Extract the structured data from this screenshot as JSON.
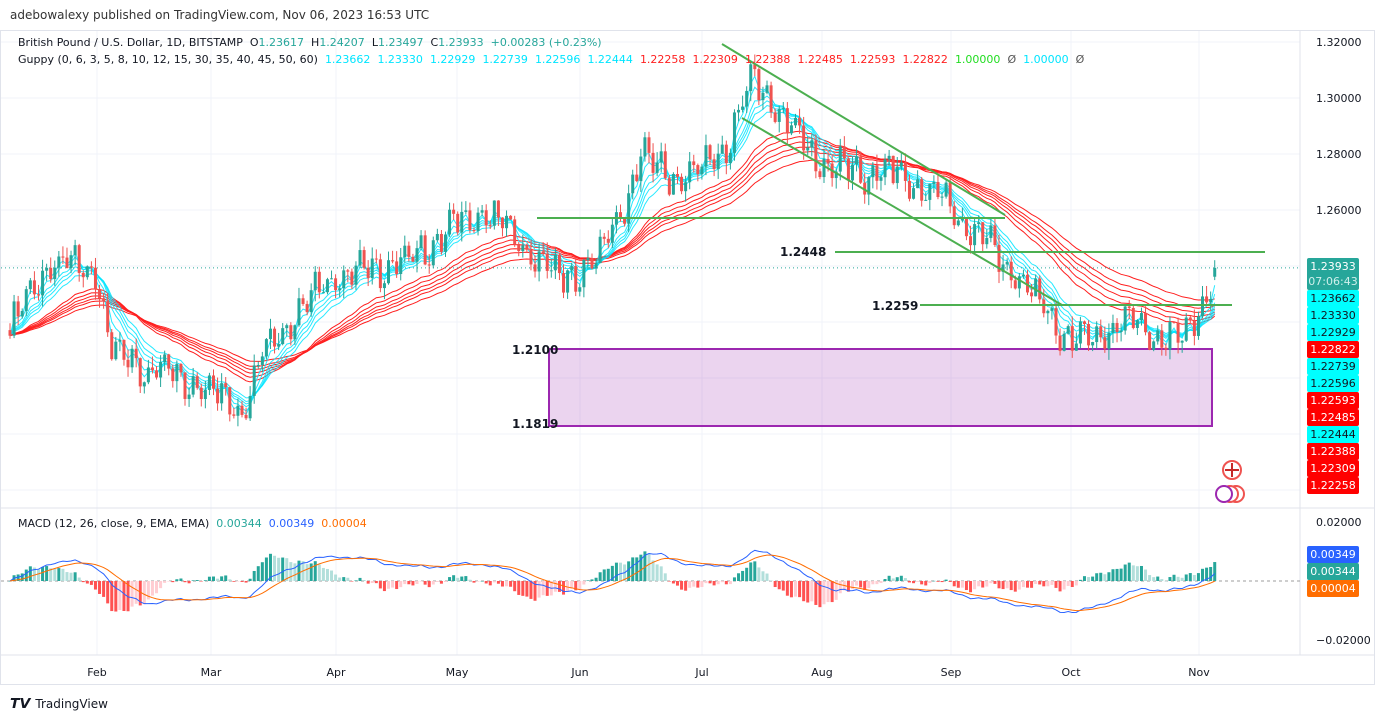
{
  "publisher": "adebowalexy published on TradingView.com, Nov 06, 2023 16:53 UTC",
  "header": {
    "symbol": "British Pound / U.S. Dollar, 1D, BITSTAMP",
    "o_label": "O",
    "o": "1.23617",
    "h_label": "H",
    "h": "1.24207",
    "l_label": "L",
    "l": "1.23497",
    "c_label": "C",
    "c": "1.23933",
    "change": "+0.00283 (+0.23%)"
  },
  "guppy": {
    "label": "Guppy (0, 6, 3, 5, 8, 10, 12, 15, 30, 35, 40, 45, 50, 60)",
    "short_values": [
      "1.23662",
      "1.23330",
      "1.22929",
      "1.22739",
      "1.22596",
      "1.22444"
    ],
    "long_values": [
      "1.22258",
      "1.22309",
      "1.22388",
      "1.22485",
      "1.22593",
      "1.22822"
    ],
    "extra1": "1.00000",
    "extra2": "1.00000",
    "null_symbol": "Ø"
  },
  "macd": {
    "label": "MACD (12, 26, close, 9, EMA, EMA)",
    "hist": "0.00344",
    "macd": "0.00349",
    "signal": "0.00004"
  },
  "price_axis": [
    "1.32000",
    "1.30000",
    "1.28000",
    "1.26000"
  ],
  "macd_axis": [
    "0.02000",
    "−0.02000"
  ],
  "current_price": {
    "price": "1.23933",
    "countdown": "07:06:43"
  },
  "price_labels": [
    {
      "v": "1.23662",
      "c": "cyan"
    },
    {
      "v": "1.23330",
      "c": "cyan"
    },
    {
      "v": "1.22929",
      "c": "cyan"
    },
    {
      "v": "1.22822",
      "c": "red"
    },
    {
      "v": "1.22739",
      "c": "cyan"
    },
    {
      "v": "1.22596",
      "c": "cyan"
    },
    {
      "v": "1.22593",
      "c": "red"
    },
    {
      "v": "1.22485",
      "c": "red"
    },
    {
      "v": "1.22444",
      "c": "cyan"
    },
    {
      "v": "1.22388",
      "c": "red"
    },
    {
      "v": "1.22309",
      "c": "red"
    },
    {
      "v": "1.22258",
      "c": "red"
    }
  ],
  "macd_labels": [
    {
      "v": "0.00349",
      "c": "#2962ff"
    },
    {
      "v": "0.00344",
      "c": "#26a69a"
    },
    {
      "v": "0.00004",
      "c": "#ff6d00"
    }
  ],
  "annotations": {
    "level1": "1.2448",
    "level2": "1.2259",
    "zone_top": "1.2100",
    "zone_bottom": "1.1819"
  },
  "time_axis": [
    "Feb",
    "Mar",
    "Apr",
    "May",
    "Jun",
    "Jul",
    "Aug",
    "Sep",
    "Oct",
    "Nov"
  ],
  "footer": "TradingView",
  "colors": {
    "up": "#26a69a",
    "down": "#ef5350",
    "short_ema": "#00e5ff",
    "long_ema": "#ff1f1f",
    "macd": "#2962ff",
    "signal": "#ff6d00",
    "trend": "#4caf50",
    "zone": "#9c27b0"
  },
  "chart_data": {
    "type": "candlestick",
    "title": "British Pound / U.S. Dollar, 1D, BITSTAMP",
    "ylim": [
      1.17,
      1.325
    ],
    "keypoints_day_price": [
      [
        0,
        1.2171
      ],
      [
        9,
        1.2404
      ],
      [
        21,
        1.2386
      ],
      [
        25,
        1.21
      ],
      [
        34,
        1.2029
      ],
      [
        47,
        1.1975
      ],
      [
        57,
        1.1886
      ],
      [
        63,
        1.2118
      ],
      [
        79,
        1.2368
      ],
      [
        96,
        1.2404
      ],
      [
        108,
        1.2529
      ],
      [
        116,
        1.26
      ],
      [
        125,
        1.2493
      ],
      [
        135,
        1.235
      ],
      [
        145,
        1.2421
      ],
      [
        155,
        1.2779
      ],
      [
        167,
        1.2707
      ],
      [
        177,
        1.285
      ],
      [
        183,
        1.3082
      ],
      [
        192,
        1.2886
      ],
      [
        202,
        1.2743
      ],
      [
        219,
        1.2725
      ],
      [
        229,
        1.2636
      ],
      [
        243,
        1.2439
      ],
      [
        256,
        1.2207
      ],
      [
        263,
        1.2118
      ],
      [
        273,
        1.2207
      ],
      [
        280,
        1.2171
      ],
      [
        288,
        1.2136
      ],
      [
        292,
        1.2225
      ],
      [
        296,
        1.2393
      ]
    ]
  }
}
